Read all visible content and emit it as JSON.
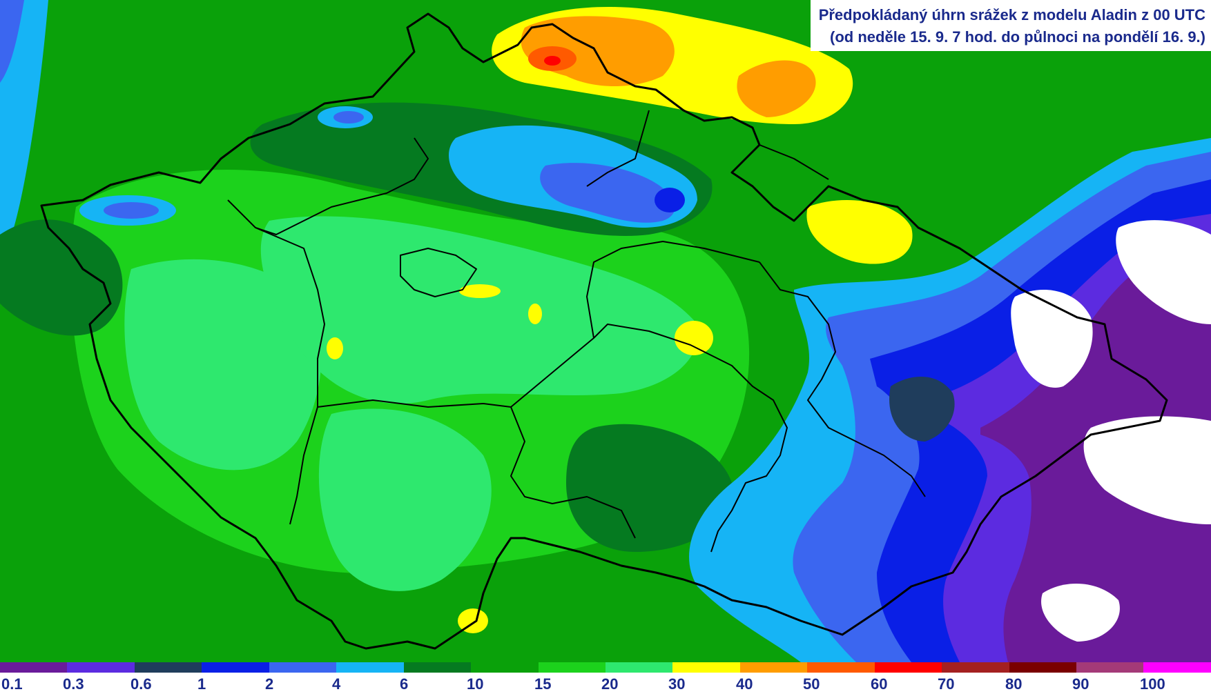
{
  "title": {
    "line1": "Předpokládaný úhrn srážek z modelu Aladin z 00 UTC",
    "line2": "(od neděle 15. 9. 7 hod. do půlnoci na pondělí 16. 9.)"
  },
  "legend": {
    "labels": [
      "0.1",
      "0.3",
      "0.6",
      "1",
      "2",
      "4",
      "6",
      "10",
      "15",
      "20",
      "30",
      "40",
      "50",
      "60",
      "70",
      "80",
      "90",
      "100"
    ],
    "colors": [
      "#6a1b9a",
      "#5c2be0",
      "#1f3d5c",
      "#0a1fe6",
      "#3b66f0",
      "#16b4f5",
      "#057a20",
      "#0aa10a",
      "#1cd21c",
      "#2ee86e",
      "#ffff00",
      "#ff9d00",
      "#ff5a00",
      "#ff0000",
      "#a42020",
      "#7a0000",
      "#a43a78",
      "#ff00ff"
    ]
  },
  "map_colors": {
    "white": "#ffffff",
    "purple": "#6a1b9a",
    "violet": "#5c2be0",
    "navy": "#1f3d5c",
    "blue": "#0a1fe6",
    "mid_blue": "#3b66f0",
    "cyan": "#16b4f5",
    "dark_green": "#057a20",
    "green": "#0aa10a",
    "bright_green": "#1cd21c",
    "light_green": "#2ee86e",
    "yellow": "#ffff00",
    "orange": "#ff9d00",
    "red_orange": "#ff5a00",
    "red": "#ff0000",
    "border": "#000000"
  }
}
